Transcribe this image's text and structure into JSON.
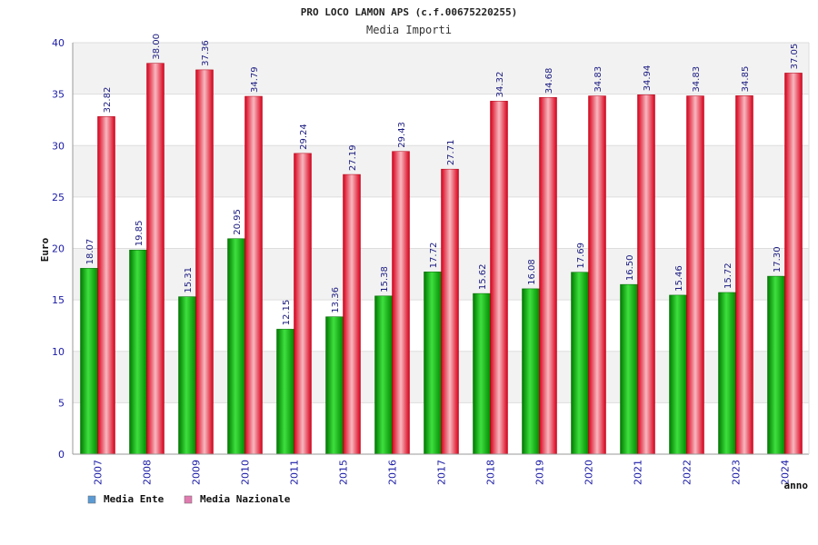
{
  "chart_data": {
    "type": "bar",
    "title": "PRO LOCO LAMON APS (c.f.00675220255)",
    "subtitle": "Media Importi",
    "xlabel": "anno",
    "ylabel": "Euro",
    "ylim": [
      0,
      40
    ],
    "yticks": [
      0,
      5,
      10,
      15,
      20,
      25,
      30,
      35,
      40
    ],
    "categories": [
      "2007",
      "2008",
      "2009",
      "2010",
      "2011",
      "2015",
      "2016",
      "2017",
      "2018",
      "2019",
      "2020",
      "2021",
      "2022",
      "2023",
      "2024"
    ],
    "series": [
      {
        "name": "Media Ente",
        "legend_color": "#5b9bd5",
        "bar_color": "#00b000",
        "values": [
          18.07,
          19.85,
          15.31,
          20.95,
          12.15,
          13.36,
          15.38,
          17.72,
          15.62,
          16.08,
          17.69,
          16.5,
          15.46,
          15.72,
          17.3
        ],
        "labels": [
          "18.07",
          "19.85",
          "15.31",
          "20.95",
          "12.15",
          "13.36",
          "15.38",
          "17.72",
          "15.62",
          "16.08",
          "17.69",
          "16.50",
          "15.46",
          "15.72",
          "17.30"
        ]
      },
      {
        "name": "Media Nazionale",
        "legend_color": "#e07bb0",
        "bar_color": "#e8101e",
        "values": [
          32.82,
          38.0,
          37.36,
          34.79,
          29.24,
          27.19,
          29.43,
          27.71,
          34.32,
          34.68,
          34.83,
          34.94,
          34.83,
          34.85,
          37.05
        ],
        "labels": [
          "32.82",
          "38.00",
          "37.36",
          "34.79",
          "29.24",
          "27.19",
          "29.43",
          "27.71",
          "34.32",
          "34.68",
          "34.83",
          "34.94",
          "34.83",
          "34.85",
          "37.05"
        ]
      }
    ],
    "grid": true,
    "legend_position": "bottom-left"
  }
}
